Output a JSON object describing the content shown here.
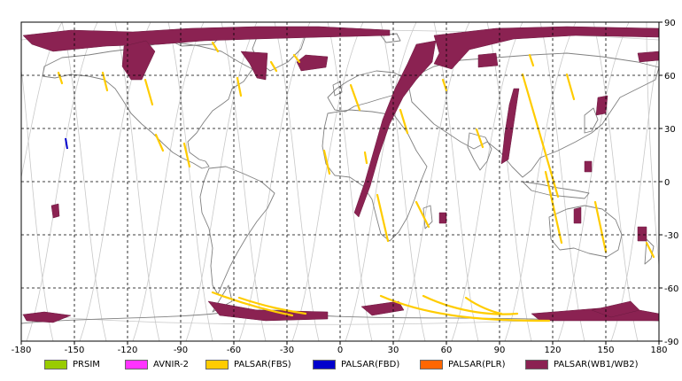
{
  "map": {
    "lon_ticks": [
      "-180",
      "-150",
      "-120",
      "-90",
      "-60",
      "-30",
      "0",
      "30",
      "60",
      "90",
      "120",
      "150",
      "180"
    ],
    "lat_ticks": [
      "90",
      "60",
      "30",
      "0",
      "-30",
      "-60",
      "-90"
    ],
    "colors": {
      "land_outline": "#808080",
      "orbit_track": "#c8c8c8",
      "grid": "#000000",
      "palsar_wb": "#8b2252",
      "palsar_fbs": "#ffcc00",
      "palsar_fbd": "#0000cc"
    }
  },
  "legend": [
    {
      "label": "PRSIM",
      "color": "#99cc00"
    },
    {
      "label": "AVNIR-2",
      "color": "#ff33ff"
    },
    {
      "label": "PALSAR(FBS)",
      "color": "#ffcc00"
    },
    {
      "label": "PALSAR(FBD)",
      "color": "#0000cc"
    },
    {
      "label": "PALSAR(PLR)",
      "color": "#ff6600"
    },
    {
      "label": "PALSAR(WB1/WB2)",
      "color": "#8b2252"
    }
  ]
}
